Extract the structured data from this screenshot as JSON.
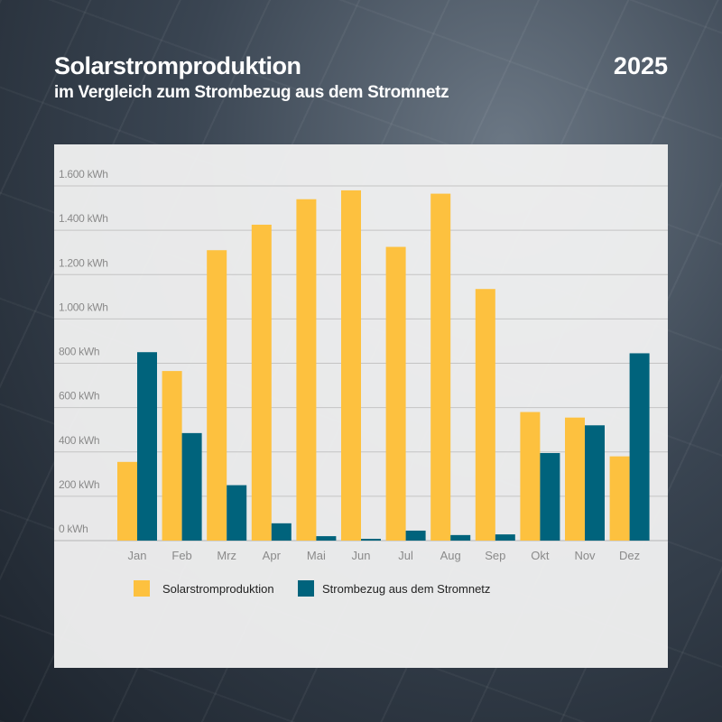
{
  "header": {
    "title": "Solarstromproduktion",
    "subtitle": "im Vergleich zum Strombezug aus dem Stromnetz",
    "year": "2025"
  },
  "chart_data": {
    "type": "bar",
    "title": "Solarstromproduktion",
    "subtitle": "im Vergleich zum Strombezug aus dem Stromnetz",
    "xlabel": "",
    "ylabel": "",
    "ylim": [
      0,
      1600
    ],
    "yticks": [
      0,
      200,
      400,
      600,
      800,
      1000,
      1200,
      1400,
      1600
    ],
    "ytick_labels": [
      "0 kWh",
      "200 kWh",
      "400 kWh",
      "600 kWh",
      "800 kWh",
      "1.000 kWh",
      "1.200 kWh",
      "1.400 kWh",
      "1.600 kWh"
    ],
    "grid": true,
    "legend_position": "bottom-left",
    "categories": [
      "Jan",
      "Feb",
      "Mrz",
      "Apr",
      "Mai",
      "Jun",
      "Jul",
      "Aug",
      "Sep",
      "Okt",
      "Nov",
      "Dez"
    ],
    "series": [
      {
        "name": "Solarstromproduktion",
        "color": "#fdc13f",
        "values": [
          355,
          765,
          1310,
          1425,
          1540,
          1580,
          1325,
          1565,
          1135,
          580,
          555,
          380
        ]
      },
      {
        "name": "Strombezug aus dem Stromnetz",
        "color": "#00637c",
        "values": [
          850,
          485,
          250,
          78,
          20,
          8,
          45,
          25,
          28,
          395,
          520,
          845
        ]
      }
    ]
  }
}
